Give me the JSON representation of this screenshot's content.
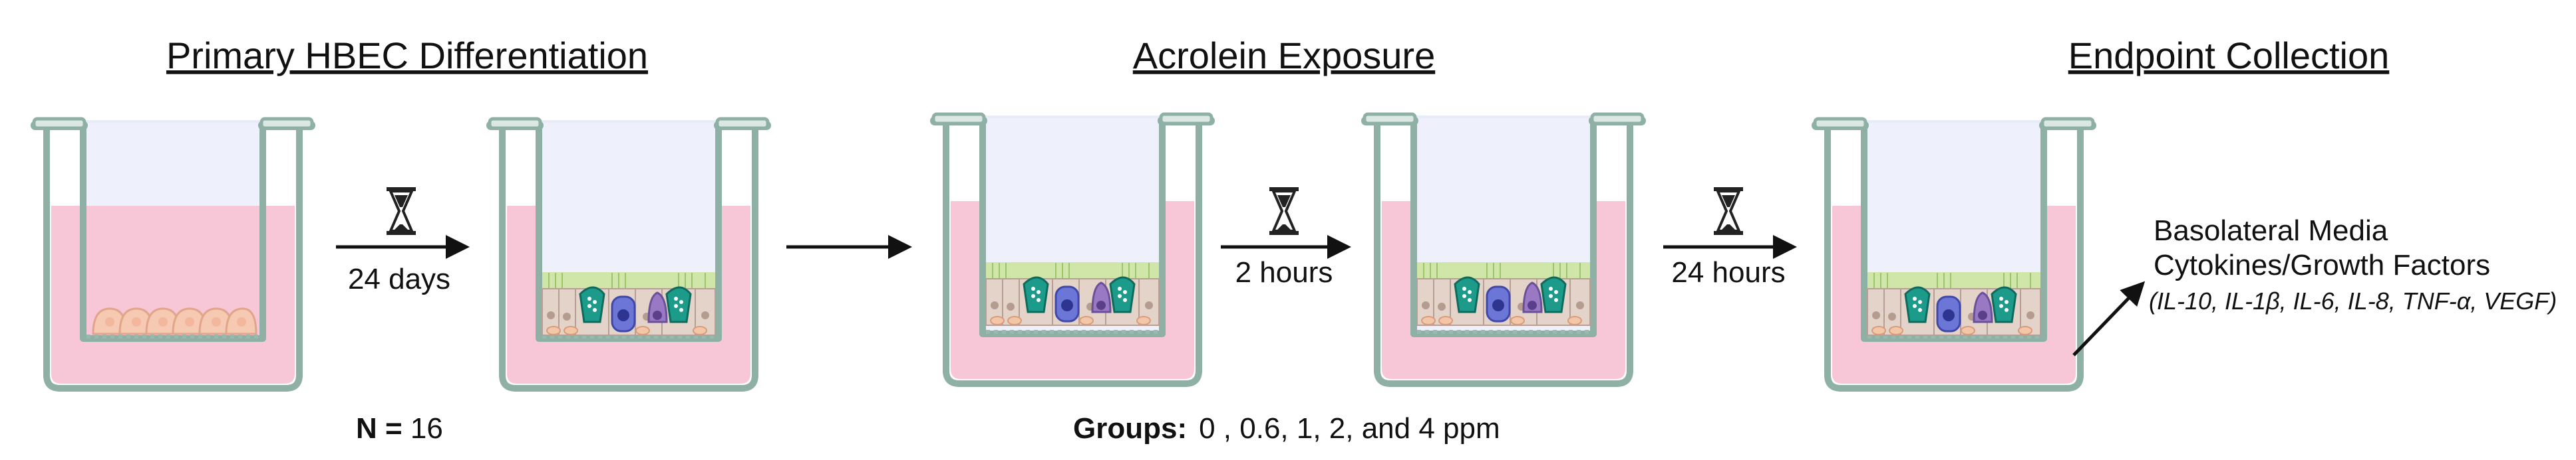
{
  "titles": {
    "differentiation": "Primary HBEC  Differentiation",
    "exposure": "Acrolein Exposure",
    "collection": "Endpoint Collection"
  },
  "steps": {
    "days": "24 days",
    "hours2": "2 hours",
    "hours24": "24 hours"
  },
  "n_label": {
    "key": "N = ",
    "value": "16"
  },
  "groups_label": {
    "key": "Groups:",
    "value": "0 , 0.6, 1, 2, and 4 ppm"
  },
  "endpoint": {
    "line1": "Basolateral Media",
    "line2": "Cytokines/Growth Factors",
    "line3": "(IL-10, IL-1β, IL-6, IL-8, TNF-α, VEGF)"
  },
  "icons": [
    "hourglass-icon",
    "arrow-right-icon",
    "transwell-insert-icon"
  ],
  "colors": {
    "media": "#f7c6d7",
    "insert": "#e8ecf8",
    "insert_stroke": "#8fb0a5",
    "cilia": "#cfe6a8",
    "goblet": "#1d9b8a",
    "basal": "#6b76d6",
    "club": "#9a79c4"
  }
}
